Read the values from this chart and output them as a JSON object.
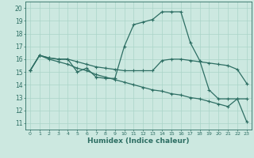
{
  "xlabel": "Humidex (Indice chaleur)",
  "ylabel": "",
  "xlim": [
    -0.5,
    23.5
  ],
  "ylim": [
    10.5,
    20.5
  ],
  "xticks": [
    0,
    1,
    2,
    3,
    4,
    5,
    6,
    7,
    8,
    9,
    10,
    11,
    12,
    13,
    14,
    15,
    16,
    17,
    18,
    19,
    20,
    21,
    22,
    23
  ],
  "yticks": [
    11,
    12,
    13,
    14,
    15,
    16,
    17,
    18,
    19,
    20
  ],
  "color": "#2d6e63",
  "bg_color": "#cce8e0",
  "grid_color": "#aad4c8",
  "lines": [
    {
      "x": [
        0,
        1,
        2,
        3,
        4,
        5,
        6,
        7,
        8,
        9,
        10,
        11,
        12,
        13,
        14,
        15,
        16,
        17,
        18,
        19,
        20,
        21,
        22,
        23
      ],
      "y": [
        15.1,
        16.3,
        16.1,
        16.0,
        16.0,
        15.0,
        15.3,
        14.6,
        14.5,
        14.5,
        17.0,
        18.7,
        18.9,
        19.1,
        19.7,
        19.7,
        19.7,
        17.3,
        15.9,
        13.6,
        12.9,
        12.9,
        12.9,
        12.9
      ]
    },
    {
      "x": [
        0,
        1,
        2,
        3,
        4,
        5,
        6,
        7,
        8,
        9,
        10,
        11,
        12,
        13,
        14,
        15,
        16,
        17,
        18,
        19,
        20,
        21,
        22,
        23
      ],
      "y": [
        15.1,
        16.3,
        16.1,
        16.0,
        16.0,
        15.8,
        15.6,
        15.4,
        15.3,
        15.2,
        15.1,
        15.1,
        15.1,
        15.1,
        15.9,
        16.0,
        16.0,
        15.9,
        15.8,
        15.7,
        15.6,
        15.5,
        15.2,
        14.1
      ]
    },
    {
      "x": [
        0,
        1,
        2,
        3,
        4,
        5,
        6,
        7,
        8,
        9,
        10,
        11,
        12,
        13,
        14,
        15,
        16,
        17,
        18,
        19,
        20,
        21,
        22,
        23
      ],
      "y": [
        15.1,
        16.3,
        16.0,
        15.8,
        15.6,
        15.3,
        15.1,
        14.8,
        14.6,
        14.4,
        14.2,
        14.0,
        13.8,
        13.6,
        13.5,
        13.3,
        13.2,
        13.0,
        12.9,
        12.7,
        12.5,
        12.3,
        12.9,
        11.1
      ]
    }
  ]
}
